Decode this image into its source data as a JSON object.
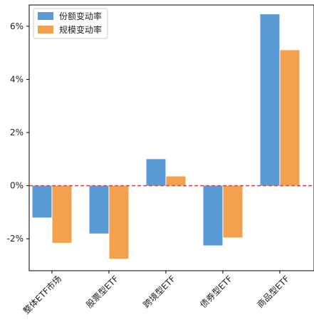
{
  "chart_data": {
    "type": "bar",
    "categories": [
      "整体ETF市场",
      "股票型ETF",
      "跨境型ETF",
      "债券型ETF",
      "商品型ETF"
    ],
    "series": [
      {
        "name": "份额变动率",
        "values": [
          -1.2,
          -1.8,
          1.0,
          -2.25,
          6.45
        ],
        "color": "#5b9bd5"
      },
      {
        "name": "规模变动率",
        "values": [
          -2.15,
          -2.75,
          0.35,
          -1.95,
          5.1
        ],
        "color": "#f4a14f"
      }
    ],
    "ylim": [
      -3.2,
      6.8
    ],
    "yticks": [
      -2,
      0,
      2,
      4,
      6
    ],
    "ytick_labels": [
      "-2%",
      "0%",
      "2%",
      "4%",
      "6%"
    ],
    "zero_line_color": "#d64545",
    "legend_position": "top-left",
    "grid": false,
    "title": "",
    "xlabel": "",
    "ylabel": ""
  }
}
